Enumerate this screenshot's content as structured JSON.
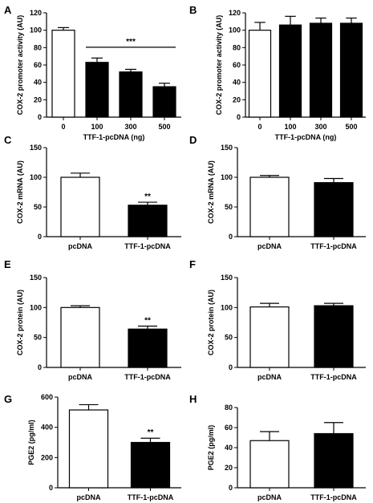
{
  "figure": {
    "panels": [
      "A",
      "B",
      "C",
      "D",
      "E",
      "F",
      "G",
      "H"
    ]
  },
  "chart_data": [
    {
      "panel": "A",
      "type": "bar",
      "ylabel": "COX-2 promoter activity (AU)",
      "xlabel": "TTF-1-pcDNA (ng)",
      "categories": [
        "0",
        "100",
        "300",
        "500"
      ],
      "values": [
        100,
        63,
        52,
        35
      ],
      "errors": [
        3,
        5,
        3,
        4
      ],
      "bar_colors": [
        "#ffffff",
        "#000000",
        "#000000",
        "#000000"
      ],
      "ylim": [
        0,
        120
      ],
      "yticks": [
        "0",
        "20",
        "40",
        "60",
        "80",
        "100",
        "120"
      ],
      "significance": {
        "label": "***",
        "type": "line",
        "from": 1,
        "to": 3
      }
    },
    {
      "panel": "B",
      "type": "bar",
      "ylabel": "COX-2 promoter activity (AU)",
      "xlabel": "TTF-1-pcDNA (ng)",
      "categories": [
        "0",
        "100",
        "300",
        "500"
      ],
      "values": [
        100,
        106,
        108,
        108
      ],
      "errors": [
        9,
        10,
        6,
        6
      ],
      "bar_colors": [
        "#ffffff",
        "#000000",
        "#000000",
        "#000000"
      ],
      "ylim": [
        0,
        120
      ],
      "yticks": [
        "0",
        "20",
        "40",
        "60",
        "80",
        "100",
        "120"
      ]
    },
    {
      "panel": "C",
      "type": "bar",
      "ylabel": "COX-2 mRNA (AU)",
      "xlabel": "",
      "categories": [
        "pcDNA",
        "TTF-1-pcDNA"
      ],
      "values": [
        100,
        53
      ],
      "errors": [
        7,
        5
      ],
      "bar_colors": [
        "#ffffff",
        "#000000"
      ],
      "ylim": [
        0,
        150
      ],
      "yticks": [
        "0",
        "50",
        "100",
        "150"
      ],
      "significance": {
        "label": "**",
        "type": "bar",
        "index": 1
      }
    },
    {
      "panel": "D",
      "type": "bar",
      "ylabel": "COX-2 mRNA (AU)",
      "xlabel": "",
      "categories": [
        "pcDNA",
        "TTF-1-pcDNA"
      ],
      "values": [
        100,
        91
      ],
      "errors": [
        3,
        7
      ],
      "bar_colors": [
        "#ffffff",
        "#000000"
      ],
      "ylim": [
        0,
        150
      ],
      "yticks": [
        "0",
        "50",
        "100",
        "150"
      ]
    },
    {
      "panel": "E",
      "type": "bar",
      "ylabel": "COX-2 protein (AU)",
      "xlabel": "",
      "categories": [
        "pcDNA",
        "TTF-1-pcDNA"
      ],
      "values": [
        100,
        64
      ],
      "errors": [
        3,
        5
      ],
      "bar_colors": [
        "#ffffff",
        "#000000"
      ],
      "ylim": [
        0,
        150
      ],
      "yticks": [
        "0",
        "50",
        "100",
        "150"
      ],
      "significance": {
        "label": "**",
        "type": "bar",
        "index": 1
      }
    },
    {
      "panel": "F",
      "type": "bar",
      "ylabel": "COX-2 protein (AU)",
      "xlabel": "",
      "categories": [
        "pcDNA",
        "TTF-1-pcDNA"
      ],
      "values": [
        101,
        103
      ],
      "errors": [
        6,
        4
      ],
      "bar_colors": [
        "#ffffff",
        "#000000"
      ],
      "ylim": [
        0,
        150
      ],
      "yticks": [
        "0",
        "50",
        "100",
        "150"
      ]
    },
    {
      "panel": "G",
      "type": "bar",
      "ylabel": "PGE2  (pg/ml)",
      "xlabel": "",
      "categories": [
        "pcDNA",
        "TTF-1-pcDNA"
      ],
      "values": [
        515,
        300
      ],
      "errors": [
        35,
        28
      ],
      "bar_colors": [
        "#ffffff",
        "#000000"
      ],
      "ylim": [
        0,
        600
      ],
      "yticks": [
        "0",
        "200",
        "400",
        "600"
      ],
      "significance": {
        "label": "**",
        "type": "bar",
        "index": 1
      }
    },
    {
      "panel": "H",
      "type": "bar",
      "ylabel": "PGE2  (pg/ml)",
      "xlabel": "",
      "categories": [
        "pcDNA",
        "TTF-1-pcDNA"
      ],
      "values": [
        47,
        54
      ],
      "errors": [
        9,
        11
      ],
      "bar_colors": [
        "#ffffff",
        "#000000"
      ],
      "ylim": [
        0,
        80
      ],
      "yticks": [
        "0",
        "20",
        "40",
        "60",
        "80"
      ]
    }
  ]
}
